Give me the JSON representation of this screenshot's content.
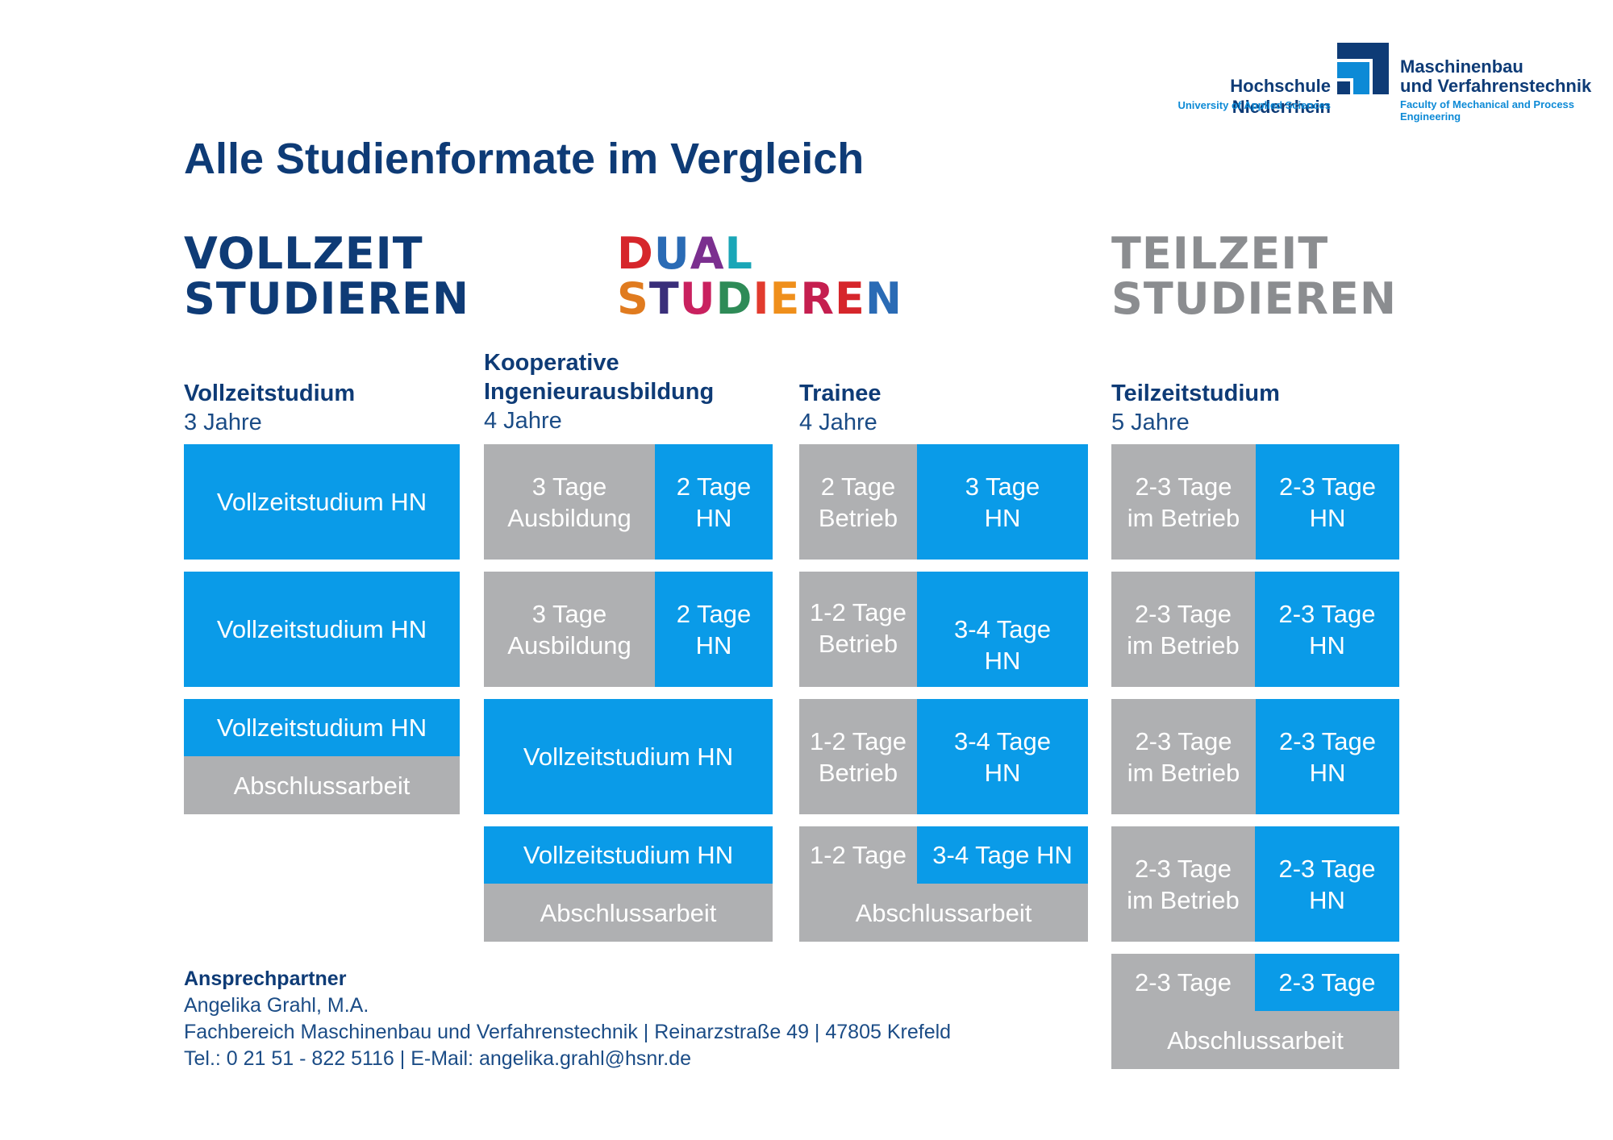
{
  "logo": {
    "university_name": "Hochschule Niederrhein",
    "university_sub": "University of Applied Sciences",
    "faculty_line1": "Maschinenbau",
    "faculty_line2": "und Verfahrenstechnik",
    "faculty_sub_line1": "Faculty of Mechanical and Process",
    "faculty_sub_line2": "Engineering",
    "mark_icon": "university-logo-mark"
  },
  "title": "Alle Studienformate im Vergleich",
  "headings": {
    "vollzeit": [
      "VOLLZEIT",
      "STUDIEREN"
    ],
    "dual": [
      "DUAL",
      "STUDIEREN"
    ],
    "teilzeit": [
      "TEILZEIT",
      "STUDIEREN"
    ]
  },
  "colors": {
    "navy": "#0e3b76",
    "blue": "#0a9be8",
    "grey": "#afb0b2",
    "heading_grey": "#8b8d90",
    "dual_letter_colors": [
      "#d6262b",
      "#2a6bb5",
      "#7b2f8f",
      "#1aa6b7",
      "#e07b1f",
      "#3a2f7a",
      "#c9215f",
      "#2e8b57",
      "#e23b2e",
      "#ef8f1b",
      "#c51f4f"
    ]
  },
  "columns": {
    "vollzeit": {
      "title": "Vollzeitstudium",
      "years": "3 Jahre",
      "rows": [
        {
          "full": "Vollzeitstudium HN"
        },
        {
          "full": "Vollzeitstudium HN"
        },
        {
          "top": "Vollzeitstudium HN",
          "bottom": "Abschlussarbeit"
        }
      ]
    },
    "kooperativ": {
      "title_line1": "Kooperative",
      "title_line2": "Ingenieurausbildung",
      "years": "4 Jahre",
      "rows": [
        {
          "left": [
            "3 Tage",
            "Ausbildung"
          ],
          "right": [
            "2 Tage",
            "HN"
          ]
        },
        {
          "left": [
            "3 Tage",
            "Ausbildung"
          ],
          "right": [
            "2 Tage",
            "HN"
          ]
        },
        {
          "full": "Vollzeitstudium HN"
        },
        {
          "top": "Vollzeitstudium HN",
          "bottom": "Abschlussarbeit"
        }
      ]
    },
    "trainee": {
      "title": "Trainee",
      "years": "4 Jahre",
      "rows": [
        {
          "left": [
            "2 Tage",
            "Betrieb"
          ],
          "right": [
            "3 Tage",
            "HN"
          ]
        },
        {
          "left": [
            "1-2 Tage",
            "Betrieb"
          ],
          "right": [
            "3-4 Tage",
            "HN"
          ]
        },
        {
          "left": [
            "1-2 Tage",
            "Betrieb"
          ],
          "right": [
            "3-4 Tage",
            "HN"
          ]
        },
        {
          "top_left": "1-2 Tage",
          "top_right": "3-4 Tage HN",
          "bottom": "Abschlussarbeit"
        }
      ]
    },
    "teilzeit": {
      "title": "Teilzeitstudium",
      "years": "5 Jahre",
      "rows": [
        {
          "left": [
            "2-3 Tage",
            "im Betrieb"
          ],
          "right": [
            "2-3 Tage",
            "HN"
          ]
        },
        {
          "left": [
            "2-3 Tage",
            "im Betrieb"
          ],
          "right": [
            "2-3 Tage",
            "HN"
          ]
        },
        {
          "left": [
            "2-3 Tage",
            "im Betrieb"
          ],
          "right": [
            "2-3 Tage",
            "HN"
          ]
        },
        {
          "left": [
            "2-3 Tage",
            "im Betrieb"
          ],
          "right": [
            "2-3 Tage",
            "HN"
          ]
        },
        {
          "top_left": "2-3 Tage",
          "top_right": "2-3 Tage",
          "bottom": "Abschlussarbeit"
        }
      ]
    }
  },
  "contact": {
    "heading": "Ansprechpartner",
    "name": "Angelika Grahl, M.A.",
    "address": "Fachbereich Maschinenbau und Verfahrenstechnik | Reinarzstraße 49 | 47805 Krefeld",
    "phone_email": "Tel.: 0 21 51 - 822 5116 | E-Mail: angelika.grahl@hsnr.de"
  }
}
